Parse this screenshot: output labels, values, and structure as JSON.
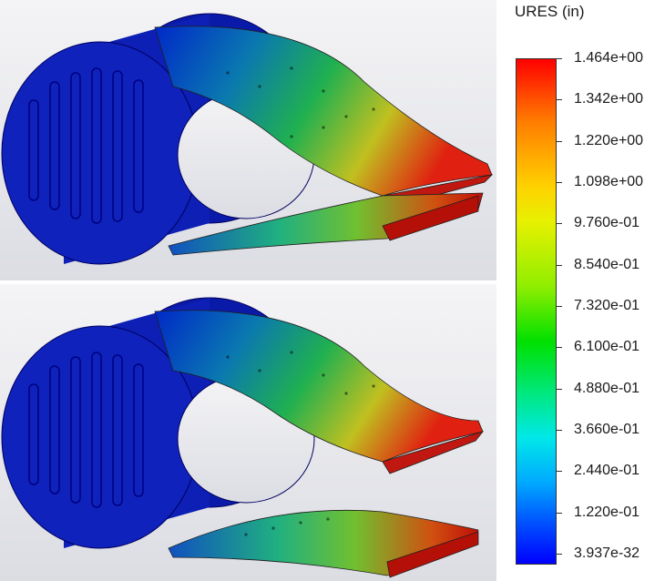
{
  "legend": {
    "title": "URES (in)",
    "ticks": [
      {
        "label": "1.464e+00"
      },
      {
        "label": "1.342e+00"
      },
      {
        "label": "1.220e+00"
      },
      {
        "label": "1.098e+00"
      },
      {
        "label": "9.760e-01"
      },
      {
        "label": "8.540e-01"
      },
      {
        "label": "7.320e-01"
      },
      {
        "label": "6.100e-01"
      },
      {
        "label": "4.880e-01"
      },
      {
        "label": "3.660e-01"
      },
      {
        "label": "2.440e-01"
      },
      {
        "label": "1.220e-01"
      },
      {
        "label": "3.937e-32"
      }
    ],
    "scale_colors": [
      "#ff0000",
      "#ffd000",
      "#00e000",
      "#00e8e8",
      "#0000ff"
    ]
  },
  "views": [
    {
      "name": "deformed-view-top"
    },
    {
      "name": "deformed-view-bottom"
    }
  ]
}
